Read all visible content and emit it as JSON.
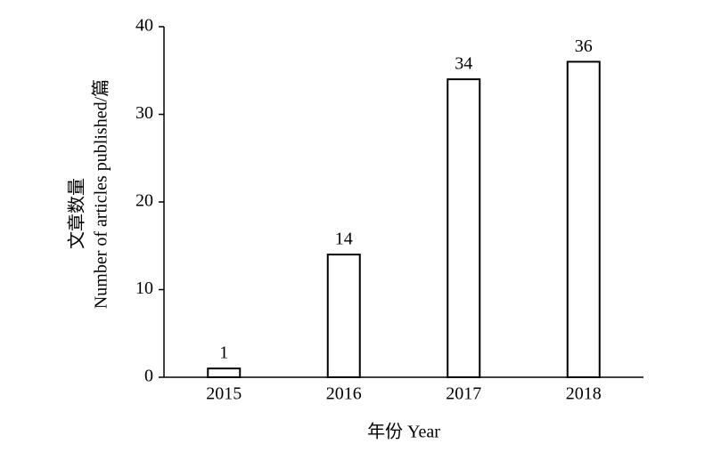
{
  "chart_data": {
    "type": "bar",
    "xlabel": "年份 Year",
    "ylabel": [
      "文章数量",
      "Number of articles published/篇"
    ],
    "categories": [
      "2015",
      "2016",
      "2017",
      "2018"
    ],
    "values": [
      1,
      14,
      34,
      36
    ],
    "color": "#ffffff",
    "ylim": [
      0,
      40
    ],
    "yticks": [
      0,
      10,
      20,
      30,
      40
    ],
    "grid": false
  }
}
